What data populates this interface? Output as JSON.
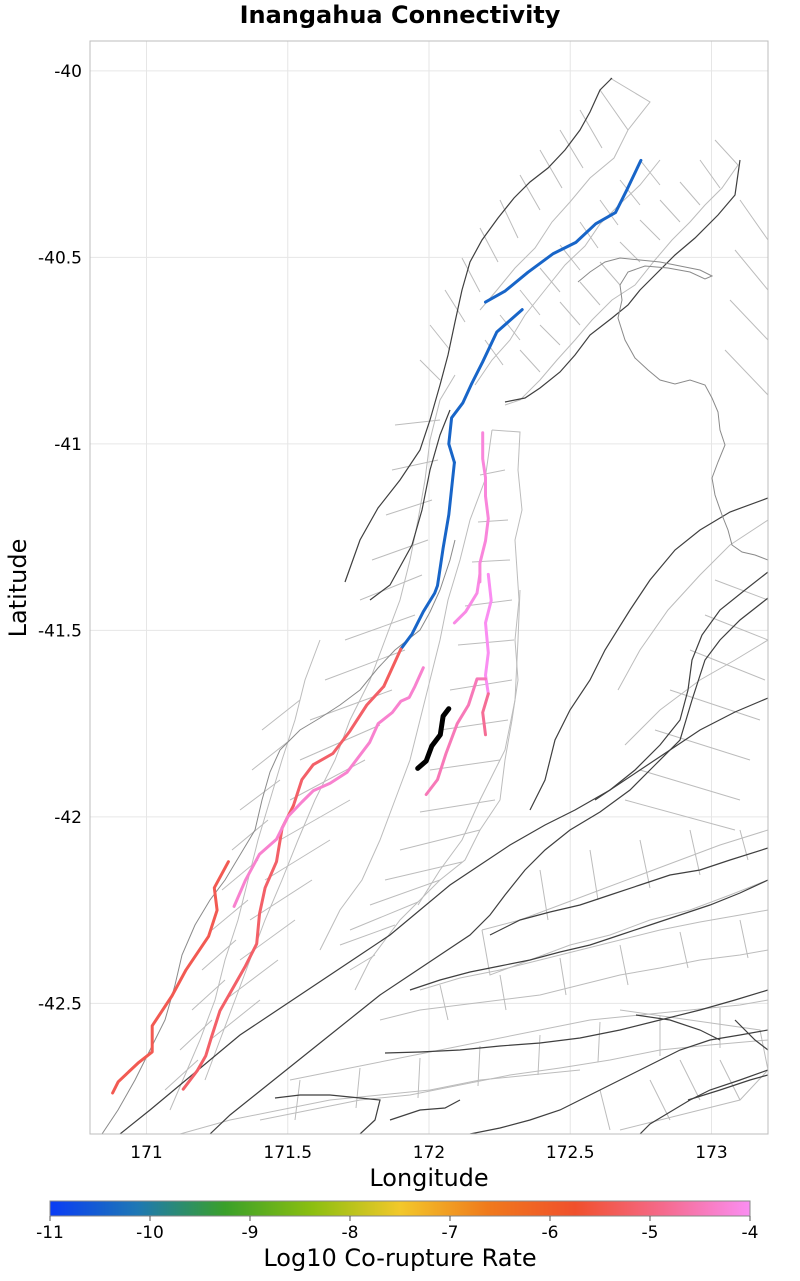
{
  "chart_data": {
    "type": "map",
    "title": "Inangahua Connectivity",
    "xlabel": "Longitude",
    "ylabel": "Latitude",
    "xlim": [
      170.8,
      173.2
    ],
    "ylim": [
      -42.85,
      -39.92
    ],
    "xticks": [
      171,
      171.5,
      172,
      172.5,
      173
    ],
    "xtick_labels": [
      "171",
      "171.5",
      "172",
      "172.5",
      "173"
    ],
    "yticks": [
      -40,
      -40.5,
      -41,
      -41.5,
      -42,
      -42.5
    ],
    "ytick_labels": [
      "-40",
      "-40.5",
      "-41",
      "-41.5",
      "-42",
      "-42.5"
    ],
    "grid": true,
    "colorbar": {
      "label": "Log10 Co-rupture Rate",
      "range": [
        -11,
        -4
      ],
      "ticks": [
        -11,
        -10,
        -9,
        -8,
        -7,
        -6,
        -5,
        -4
      ],
      "tick_labels": [
        "-11",
        "-10",
        "-9",
        "-8",
        "-7",
        "-6",
        "-5",
        "-4"
      ],
      "colors": [
        "#0a3cf5",
        "#1e78b4",
        "#3aa02a",
        "#8cbf10",
        "#f2c82a",
        "#f07a1c",
        "#f0502c",
        "#f56a8c",
        "#fa8ef2"
      ]
    },
    "focus_section": {
      "name": "Inangahua",
      "color": "#000000",
      "points": [
        [
          172.07,
          -41.71
        ],
        [
          172.05,
          -41.73
        ],
        [
          172.04,
          -41.78
        ],
        [
          172.01,
          -41.81
        ],
        [
          171.99,
          -41.85
        ],
        [
          171.96,
          -41.87
        ]
      ]
    },
    "rupture_sections": [
      {
        "log10_rate": -10.4,
        "points": [
          [
            172.33,
            -40.64
          ],
          [
            172.24,
            -40.7
          ],
          [
            172.19,
            -40.78
          ],
          [
            172.15,
            -40.84
          ],
          [
            172.12,
            -40.89
          ],
          [
            172.08,
            -40.93
          ],
          [
            172.07,
            -41.0
          ],
          [
            172.09,
            -41.05
          ]
        ]
      },
      {
        "log10_rate": -10.4,
        "points": [
          [
            172.2,
            -40.62
          ],
          [
            172.27,
            -40.59
          ],
          [
            172.35,
            -40.54
          ],
          [
            172.44,
            -40.49
          ],
          [
            172.52,
            -40.46
          ],
          [
            172.59,
            -40.41
          ],
          [
            172.66,
            -40.38
          ],
          [
            172.7,
            -40.32
          ],
          [
            172.75,
            -40.24
          ]
        ]
      },
      {
        "log10_rate": -10.4,
        "points": [
          [
            172.09,
            -41.05
          ],
          [
            172.08,
            -41.12
          ],
          [
            172.07,
            -41.19
          ],
          [
            172.05,
            -41.28
          ],
          [
            172.04,
            -41.33
          ],
          [
            172.03,
            -41.38
          ],
          [
            172.02,
            -41.4
          ],
          [
            171.98,
            -41.45
          ],
          [
            171.94,
            -41.51
          ],
          [
            171.9,
            -41.55
          ]
        ]
      },
      {
        "log10_rate": -5.3,
        "points": [
          [
            171.9,
            -41.55
          ],
          [
            171.87,
            -41.6
          ],
          [
            171.84,
            -41.65
          ]
        ]
      },
      {
        "log10_rate": -5.2,
        "points": [
          [
            171.84,
            -41.65
          ],
          [
            171.78,
            -41.7
          ],
          [
            171.72,
            -41.77
          ],
          [
            171.66,
            -41.83
          ],
          [
            171.59,
            -41.86
          ],
          [
            171.55,
            -41.9
          ],
          [
            171.52,
            -41.97
          ]
        ]
      },
      {
        "log10_rate": -5.3,
        "points": [
          [
            171.52,
            -41.97
          ],
          [
            171.48,
            -42.03
          ]
        ]
      },
      {
        "log10_rate": -5.2,
        "points": [
          [
            171.48,
            -42.03
          ],
          [
            171.46,
            -42.12
          ],
          [
            171.42,
            -42.19
          ],
          [
            171.4,
            -42.26
          ],
          [
            171.39,
            -42.34
          ],
          [
            171.35,
            -42.4
          ],
          [
            171.29,
            -42.48
          ],
          [
            171.26,
            -42.52
          ],
          [
            171.23,
            -42.59
          ],
          [
            171.21,
            -42.64
          ],
          [
            171.18,
            -42.68
          ],
          [
            171.13,
            -42.73
          ]
        ]
      },
      {
        "log10_rate": -5.4,
        "points": [
          [
            171.29,
            -42.12
          ],
          [
            171.24,
            -42.19
          ],
          [
            171.25,
            -42.25
          ],
          [
            171.22,
            -42.32
          ],
          [
            171.14,
            -42.41
          ],
          [
            171.09,
            -42.48
          ],
          [
            171.02,
            -42.56
          ],
          [
            171.02,
            -42.63
          ],
          [
            170.97,
            -42.66
          ],
          [
            170.9,
            -42.71
          ],
          [
            170.88,
            -42.74
          ]
        ]
      },
      {
        "log10_rate": -4.3,
        "points": [
          [
            171.31,
            -42.24
          ],
          [
            171.35,
            -42.17
          ],
          [
            171.4,
            -42.1
          ],
          [
            171.46,
            -42.06
          ],
          [
            171.5,
            -42.0
          ],
          [
            171.55,
            -41.96
          ],
          [
            171.59,
            -41.93
          ],
          [
            171.65,
            -41.91
          ],
          [
            171.71,
            -41.88
          ],
          [
            171.79,
            -41.8
          ],
          [
            171.82,
            -41.75
          ],
          [
            171.87,
            -41.72
          ],
          [
            171.9,
            -41.69
          ],
          [
            171.93,
            -41.68
          ],
          [
            171.95,
            -41.65
          ],
          [
            171.98,
            -41.6
          ]
        ]
      },
      {
        "log10_rate": -4.1,
        "points": [
          [
            172.18,
            -41.35
          ],
          [
            172.17,
            -41.4
          ],
          [
            172.13,
            -41.45
          ],
          [
            172.09,
            -41.48
          ]
        ]
      },
      {
        "log10_rate": -4.2,
        "points": [
          [
            172.18,
            -41.37
          ],
          [
            172.18,
            -41.32
          ],
          [
            172.2,
            -41.26
          ],
          [
            172.21,
            -41.2
          ],
          [
            172.2,
            -41.14
          ],
          [
            172.2,
            -41.09
          ],
          [
            172.19,
            -41.04
          ],
          [
            172.19,
            -40.97
          ]
        ]
      },
      {
        "log10_rate": -4.0,
        "points": [
          [
            172.21,
            -41.35
          ],
          [
            172.22,
            -41.42
          ],
          [
            172.2,
            -41.48
          ],
          [
            172.21,
            -41.56
          ],
          [
            172.2,
            -41.62
          ],
          [
            172.21,
            -41.67
          ]
        ]
      },
      {
        "log10_rate": -4.5,
        "points": [
          [
            172.2,
            -41.63
          ],
          [
            172.17,
            -41.63
          ],
          [
            172.14,
            -41.7
          ],
          [
            172.1,
            -41.75
          ],
          [
            172.06,
            -41.83
          ],
          [
            172.03,
            -41.9
          ],
          [
            171.99,
            -41.94
          ]
        ]
      },
      {
        "log10_rate": -4.8,
        "points": [
          [
            172.21,
            -41.67
          ],
          [
            172.19,
            -41.72
          ],
          [
            172.2,
            -41.78
          ]
        ]
      }
    ]
  }
}
